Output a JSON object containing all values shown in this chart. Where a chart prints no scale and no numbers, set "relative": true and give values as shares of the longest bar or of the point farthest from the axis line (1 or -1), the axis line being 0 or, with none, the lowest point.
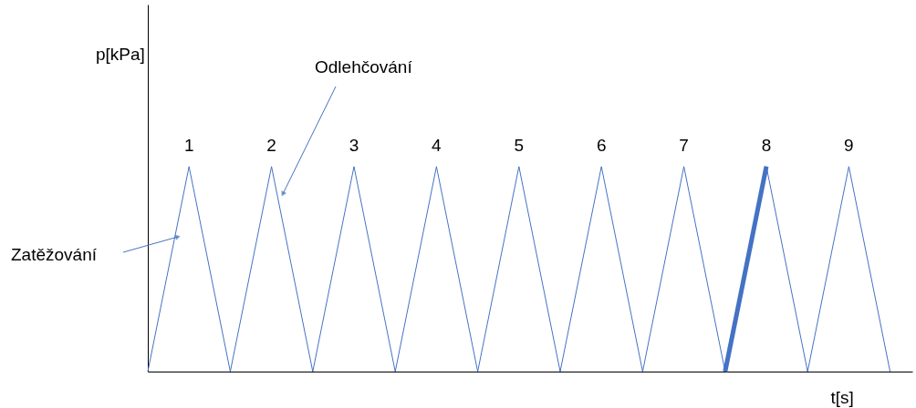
{
  "chart_data": {
    "type": "line",
    "relative": true,
    "xlabel": "t[s]",
    "categories": [
      null,
      null,
      null,
      null,
      null,
      null,
      null,
      null,
      null,
      null,
      null,
      null,
      null,
      null,
      null,
      null,
      null,
      null,
      null
    ],
    "series": [
      {
        "color": "#4472c4",
        "values": [
          0,
          1,
          0,
          1,
          0,
          1,
          0,
          1,
          0,
          1,
          0,
          1,
          0,
          1,
          0,
          1,
          0,
          1,
          0
        ]
      },
      {
        "color": "#4472c4",
        "values": [
          null,
          null,
          null,
          null,
          null,
          null,
          null,
          null,
          null,
          null,
          null,
          null,
          null,
          null,
          0,
          1,
          null,
          null,
          null
        ]
      }
    ],
    "annotations": [
      "1",
      "2",
      "3",
      "4",
      "5",
      "6",
      "7",
      "8",
      "9",
      "Zatěžování",
      "Odlehčování",
      "p[kPa]"
    ]
  }
}
